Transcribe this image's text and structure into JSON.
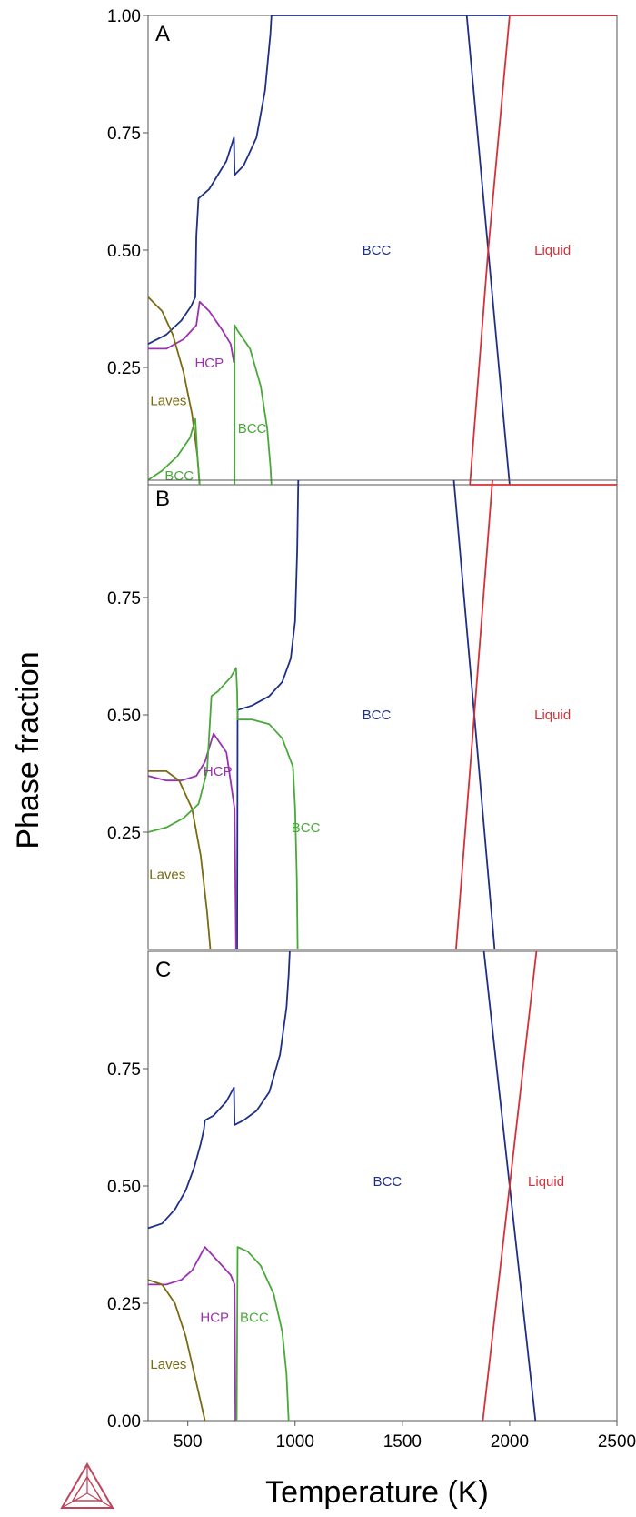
{
  "chart_data": {
    "type": "line",
    "xlabel": "Temperature (K)",
    "ylabel": "Phase fraction",
    "xlim": [
      315,
      2500
    ],
    "ylim": [
      0,
      1
    ],
    "x_ticks": [
      "500",
      "1000",
      "1500",
      "2000",
      "2500"
    ],
    "colors": {
      "bcc_matrix": "#1f2f86",
      "liquid": "#d4323a",
      "hcp": "#9b30b0",
      "laves": "#7a6a12",
      "bcc_secondary": "#4aa83a"
    },
    "logo_icon": "thermocalc-triangle-icon",
    "panels": [
      {
        "letter": "A",
        "y_ticks": [
          "1.00",
          "0.75",
          "0.50",
          "0.25"
        ],
        "labels": [
          {
            "text": "BCC",
            "x": 1380,
            "y": 0.49,
            "color": "#1f2f86"
          },
          {
            "text": "Liquid",
            "x": 2200,
            "y": 0.49,
            "color": "#d4323a"
          },
          {
            "text": "HCP",
            "x": 600,
            "y": 0.25,
            "color": "#9b30b0"
          },
          {
            "text": "Laves",
            "x": 410,
            "y": 0.17,
            "color": "#7a6a12"
          },
          {
            "text": "BCC",
            "x": 800,
            "y": 0.11,
            "color": "#4aa83a"
          },
          {
            "text": "BCC",
            "x": 460,
            "y": 0.01,
            "color": "#4aa83a"
          }
        ],
        "series": [
          {
            "color": "#1f2f86",
            "x": [
              315,
              400,
              470,
              515,
              535,
              540,
              550,
              600,
              680,
              715,
              718,
              760,
              820,
              860,
              885,
              890,
              2500
            ],
            "y": [
              0.3,
              0.32,
              0.35,
              0.38,
              0.4,
              0.53,
              0.61,
              0.63,
              0.69,
              0.74,
              0.66,
              0.68,
              0.74,
              0.84,
              0.96,
              1.0,
              1.0
            ]
          },
          {
            "color": "#1f2f86",
            "x": [
              1800,
              1900,
              2000
            ],
            "y": [
              1.0,
              0.5,
              0.0
            ]
          },
          {
            "color": "#d4323a",
            "x": [
              1815,
              1900,
              2000,
              2500
            ],
            "y": [
              0.0,
              0.5,
              1.0,
              1.0
            ]
          },
          {
            "color": "#d4323a",
            "x": [
              1815,
              2500
            ],
            "y": [
              0.0,
              0.0
            ]
          },
          {
            "color": "#9b30b0",
            "x": [
              315,
              400,
              480,
              540,
              555,
              600,
              660,
              700,
              715
            ],
            "y": [
              0.29,
              0.29,
              0.31,
              0.34,
              0.39,
              0.37,
              0.33,
              0.3,
              0.26
            ]
          },
          {
            "color": "#7a6a12",
            "x": [
              315,
              380,
              430,
              480,
              520,
              545,
              555
            ],
            "y": [
              0.4,
              0.37,
              0.32,
              0.24,
              0.15,
              0.06,
              0.0
            ]
          },
          {
            "color": "#4aa83a",
            "x": [
              315,
              380,
              450,
              510,
              535,
              545,
              555
            ],
            "y": [
              0.01,
              0.03,
              0.06,
              0.1,
              0.14,
              0.06,
              0.0
            ]
          },
          {
            "color": "#4aa83a",
            "x": [
              718,
              718,
              730,
              790,
              840,
              870,
              885,
              890
            ],
            "y": [
              0.0,
              0.34,
              0.33,
              0.29,
              0.21,
              0.12,
              0.04,
              0.0
            ]
          }
        ]
      },
      {
        "letter": "B",
        "y_ticks": [
          "0.75",
          "0.50",
          "0.25"
        ],
        "labels": [
          {
            "text": "BCC",
            "x": 1380,
            "y": 0.49,
            "color": "#1f2f86"
          },
          {
            "text": "Liquid",
            "x": 2200,
            "y": 0.49,
            "color": "#d4323a"
          },
          {
            "text": "HCP",
            "x": 640,
            "y": 0.37,
            "color": "#9b30b0"
          },
          {
            "text": "BCC",
            "x": 1050,
            "y": 0.25,
            "color": "#4aa83a"
          },
          {
            "text": "Laves",
            "x": 405,
            "y": 0.15,
            "color": "#7a6a12"
          }
        ],
        "series": [
          {
            "color": "#1f2f86",
            "x": [
              730,
              732,
              800,
              880,
              940,
              980,
              1000,
              1010,
              1015
            ],
            "y": [
              0.0,
              0.51,
              0.52,
              0.54,
              0.57,
              0.62,
              0.7,
              0.85,
              1.0
            ]
          },
          {
            "color": "#1f2f86",
            "x": [
              1740,
              1835,
              1930
            ],
            "y": [
              1.0,
              0.5,
              0.0
            ]
          },
          {
            "color": "#d4323a",
            "x": [
              1750,
              1835,
              1920
            ],
            "y": [
              0.0,
              0.5,
              1.0
            ]
          },
          {
            "color": "#9b30b0",
            "x": [
              315,
              400,
              470,
              540,
              580,
              620,
              680,
              718,
              725
            ],
            "y": [
              0.37,
              0.36,
              0.36,
              0.37,
              0.4,
              0.46,
              0.42,
              0.3,
              0.0
            ]
          },
          {
            "color": "#7a6a12",
            "x": [
              315,
              400,
              460,
              520,
              560,
              590,
              605
            ],
            "y": [
              0.38,
              0.38,
              0.36,
              0.3,
              0.2,
              0.08,
              0.0
            ]
          },
          {
            "color": "#4aa83a",
            "x": [
              315,
              400,
              480,
              550,
              590,
              610,
              640,
              700,
              725,
              730,
              732,
              800,
              880,
              940,
              990,
              1000,
              1008,
              1012
            ],
            "y": [
              0.25,
              0.26,
              0.28,
              0.31,
              0.38,
              0.54,
              0.55,
              0.58,
              0.6,
              0.55,
              0.49,
              0.49,
              0.48,
              0.45,
              0.39,
              0.3,
              0.15,
              0.0
            ]
          }
        ]
      },
      {
        "letter": "C",
        "y_ticks": [
          "0.75",
          "0.50",
          "0.25",
          "0.00"
        ],
        "labels": [
          {
            "text": "BCC",
            "x": 1430,
            "y": 0.5,
            "color": "#1f2f86"
          },
          {
            "text": "Liquid",
            "x": 2170,
            "y": 0.5,
            "color": "#d4323a"
          },
          {
            "text": "HCP",
            "x": 625,
            "y": 0.21,
            "color": "#9b30b0"
          },
          {
            "text": "BCC",
            "x": 810,
            "y": 0.21,
            "color": "#4aa83a"
          },
          {
            "text": "Laves",
            "x": 410,
            "y": 0.11,
            "color": "#7a6a12"
          }
        ],
        "series": [
          {
            "color": "#1f2f86",
            "x": [
              315,
              380,
              440,
              490,
              530,
              560,
              575,
              580,
              620,
              680,
              715,
              718,
              760,
              820,
              880,
              930,
              960,
              970,
              975
            ],
            "y": [
              0.41,
              0.42,
              0.45,
              0.49,
              0.54,
              0.59,
              0.62,
              0.64,
              0.65,
              0.68,
              0.71,
              0.63,
              0.64,
              0.66,
              0.7,
              0.78,
              0.88,
              0.95,
              1.0
            ]
          },
          {
            "color": "#1f2f86",
            "x": [
              1880,
              2000,
              2120
            ],
            "y": [
              1.0,
              0.5,
              0.0
            ]
          },
          {
            "color": "#d4323a",
            "x": [
              1875,
              2000,
              2125
            ],
            "y": [
              0.0,
              0.5,
              1.0
            ]
          },
          {
            "color": "#9b30b0",
            "x": [
              315,
              400,
              470,
              520,
              580,
              640,
              700,
              718,
              722
            ],
            "y": [
              0.29,
              0.29,
              0.3,
              0.32,
              0.37,
              0.34,
              0.31,
              0.29,
              0.0
            ]
          },
          {
            "color": "#7a6a12",
            "x": [
              315,
              380,
              440,
              490,
              530,
              560,
              580
            ],
            "y": [
              0.3,
              0.29,
              0.25,
              0.18,
              0.1,
              0.04,
              0.0
            ]
          },
          {
            "color": "#4aa83a",
            "x": [
              728,
              732,
              780,
              840,
              900,
              940,
              960,
              970
            ],
            "y": [
              0.0,
              0.37,
              0.36,
              0.33,
              0.27,
              0.19,
              0.1,
              0.0
            ]
          }
        ]
      }
    ]
  }
}
